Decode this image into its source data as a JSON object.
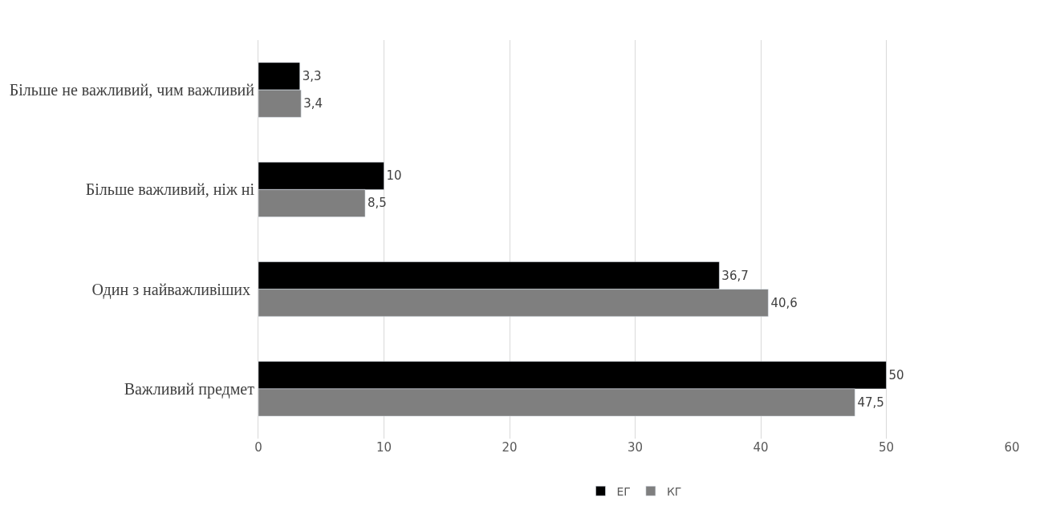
{
  "chart_data": {
    "type": "bar",
    "orientation": "horizontal",
    "categories": [
      "Більше не важливий, чим важливий",
      "Більше важливий, ніж ні",
      "Один з найважливіших ",
      "Важливий предмет"
    ],
    "series": [
      {
        "name": "ЕГ",
        "color": "#000000",
        "values": [
          3.3,
          10,
          36.7,
          50
        ],
        "value_labels": [
          "3,3",
          "10",
          "36,7",
          "50"
        ]
      },
      {
        "name": "КГ",
        "color": "#7f7f7f",
        "values": [
          3.4,
          8.5,
          40.6,
          47.5
        ],
        "value_labels": [
          "3,4",
          "8,5",
          "40,6",
          "47,5"
        ]
      }
    ],
    "xlim": [
      0,
      60
    ],
    "xticks": [
      0,
      10,
      20,
      30,
      40,
      50,
      60
    ],
    "grid": "x",
    "legend": "bottom"
  }
}
